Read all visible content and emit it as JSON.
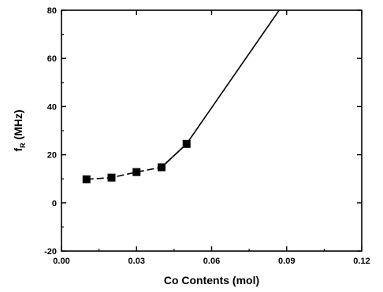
{
  "chart_data": {
    "type": "line",
    "title": "",
    "xlabel": "Co Contents (mol)",
    "ylabel_main": "f",
    "ylabel_sub": "R",
    "ylabel_unit": "(MHz)",
    "xlim": [
      0.0,
      0.12
    ],
    "ylim": [
      -20,
      80
    ],
    "x_ticks": [
      "0.00",
      "0.03",
      "0.06",
      "0.09",
      "0.12"
    ],
    "x_tick_values": [
      0.0,
      0.03,
      0.06,
      0.09,
      0.12
    ],
    "y_ticks": [
      "-20",
      "0",
      "20",
      "40",
      "60",
      "80"
    ],
    "y_tick_values": [
      -20,
      0,
      20,
      40,
      60,
      80
    ],
    "grid": false,
    "series": [
      {
        "marker": "square",
        "line": "dashed",
        "x": [
          0.01,
          0.02,
          0.03,
          0.04,
          0.05
        ],
        "y": [
          9.8,
          10.5,
          12.8,
          14.8,
          24.5
        ]
      },
      {
        "marker": "none",
        "line": "solid",
        "x": [
          0.04,
          0.05,
          0.087
        ],
        "y": [
          14.8,
          24.5,
          80
        ]
      }
    ]
  }
}
